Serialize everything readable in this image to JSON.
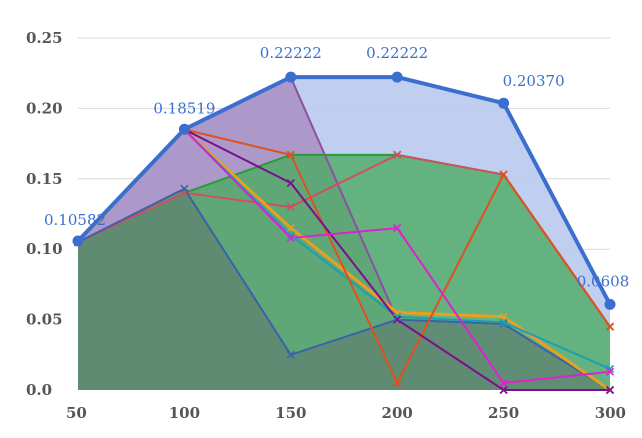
{
  "chart_data": {
    "type": "area",
    "x": [
      50,
      100,
      150,
      200,
      250,
      300
    ],
    "xlim": [
      50,
      300
    ],
    "ylim": [
      0,
      0.25
    ],
    "y_ticks": [
      0,
      0.05,
      0.1,
      0.15,
      0.2,
      0.25
    ],
    "x_tick_labels": [
      "50",
      "100",
      "150",
      "200",
      "250",
      "300"
    ],
    "y_tick_labels": [
      "0.0",
      "0.05",
      "0.10",
      "0.15",
      "0.20",
      "0.25"
    ],
    "grid": "horizontal",
    "title": "",
    "xlabel": "",
    "ylabel": "",
    "series": [
      {
        "values": [
          0.10582,
          0.18519,
          0.22222,
          0.22222,
          0.2037,
          0.0608
        ],
        "line_color": "#3a6fd0",
        "fill_color": "#b9caee",
        "fill_opacity": 0.9,
        "line_width": 4,
        "marker": "circle",
        "data_labels": [
          "0.10582",
          "0.18519",
          "0.22222",
          "0.22222",
          "0.20370",
          "0.0608"
        ]
      },
      {
        "values": [
          0.105,
          0.185,
          0.222,
          0.05,
          0.0,
          0.0
        ],
        "line_color": "#8e4fa3",
        "fill_color": "#a88bbf",
        "fill_opacity": 0.8,
        "line_width": 2,
        "marker": "x"
      },
      {
        "values": [
          0.105,
          0.14,
          0.167,
          0.167,
          0.153,
          0.045
        ],
        "line_color": "#2a9a3a",
        "fill_color": "#4caa64",
        "fill_opacity": 0.8,
        "line_width": 2,
        "marker": "x"
      },
      {
        "values": [
          0.105,
          0.14,
          0.13,
          0.167,
          0.153,
          0.045
        ],
        "line_color": "#d05060",
        "fill_color": "",
        "fill_opacity": 0,
        "line_width": 2,
        "marker": "x"
      },
      {
        "values": [
          0.105,
          0.143,
          0.025,
          0.05,
          0.047,
          0.0
        ],
        "line_color": "#3a62a8",
        "fill_color": "#5d8270",
        "fill_opacity": 0.75,
        "line_width": 2,
        "marker": "x"
      },
      {
        "values": [
          0.105,
          0.185,
          0.115,
          0.055,
          0.052,
          0.0
        ],
        "line_color": "#e8a020",
        "fill_color": "",
        "fill_opacity": 0,
        "line_width": 3,
        "marker": "x"
      },
      {
        "values": [
          0.105,
          0.185,
          0.11,
          0.052,
          0.048,
          0.015
        ],
        "line_color": "#1aa0b0",
        "fill_color": "",
        "fill_opacity": 0,
        "line_width": 2,
        "marker": "x"
      },
      {
        "values": [
          0.105,
          0.185,
          0.167,
          0.005,
          0.153,
          0.045
        ],
        "line_color": "#e05020",
        "fill_color": "",
        "fill_opacity": 0,
        "line_width": 2,
        "marker": "x"
      },
      {
        "values": [
          0.105,
          0.185,
          0.147,
          0.05,
          0.0,
          0.0
        ],
        "line_color": "#7a108a",
        "fill_color": "",
        "fill_opacity": 0,
        "line_width": 2,
        "marker": "x"
      },
      {
        "values": [
          0.105,
          0.185,
          0.108,
          0.115,
          0.005,
          0.013
        ],
        "line_color": "#e020d0",
        "fill_color": "",
        "fill_opacity": 0,
        "line_width": 2,
        "marker": "x"
      }
    ]
  }
}
